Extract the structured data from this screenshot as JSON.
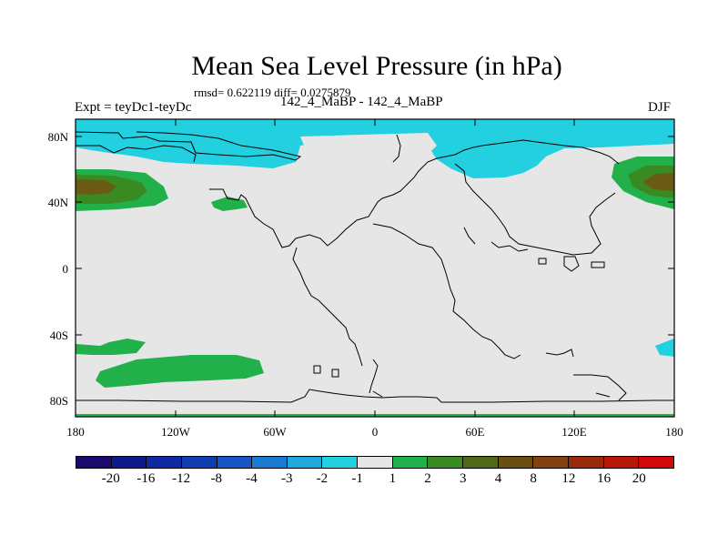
{
  "title": "Mean Sea Level Pressure (in hPa)",
  "stats": "rmsd= 0.622119 diff= 0.0275879",
  "left_label": "Expt = teyDc1-teyDc",
  "center_label": "142_4_MaBP - 142_4_MaBP",
  "right_label": "DJF",
  "axes": {
    "lat_ticks": [
      "80N",
      "40N",
      "0",
      "40S",
      "80S"
    ],
    "lon_ticks": [
      "180",
      "120W",
      "60W",
      "0",
      "60E",
      "120E",
      "180"
    ]
  },
  "colorbar": {
    "colors": [
      "#1a0a6e",
      "#0d1a8c",
      "#0f2aa0",
      "#103eb0",
      "#1458c8",
      "#1a7ad0",
      "#20a8dc",
      "#22d0e0",
      "#e6e6e6",
      "#22b04a",
      "#3a8a22",
      "#4e6a14",
      "#6a5010",
      "#844010",
      "#9a2a0c",
      "#b81808",
      "#d00a0a"
    ],
    "labels": [
      "-20",
      "-16",
      "-12",
      "-8",
      "-4",
      "-3",
      "-2",
      "-1",
      "1",
      "2",
      "3",
      "4",
      "8",
      "12",
      "16",
      "20"
    ]
  },
  "colors": {
    "background": "#e6e6e6",
    "cyan": "#22d0e0",
    "green": "#22b04a",
    "dark_green": "#3a8a22",
    "olive": "#6a5a14",
    "brown": "#5a4418"
  }
}
